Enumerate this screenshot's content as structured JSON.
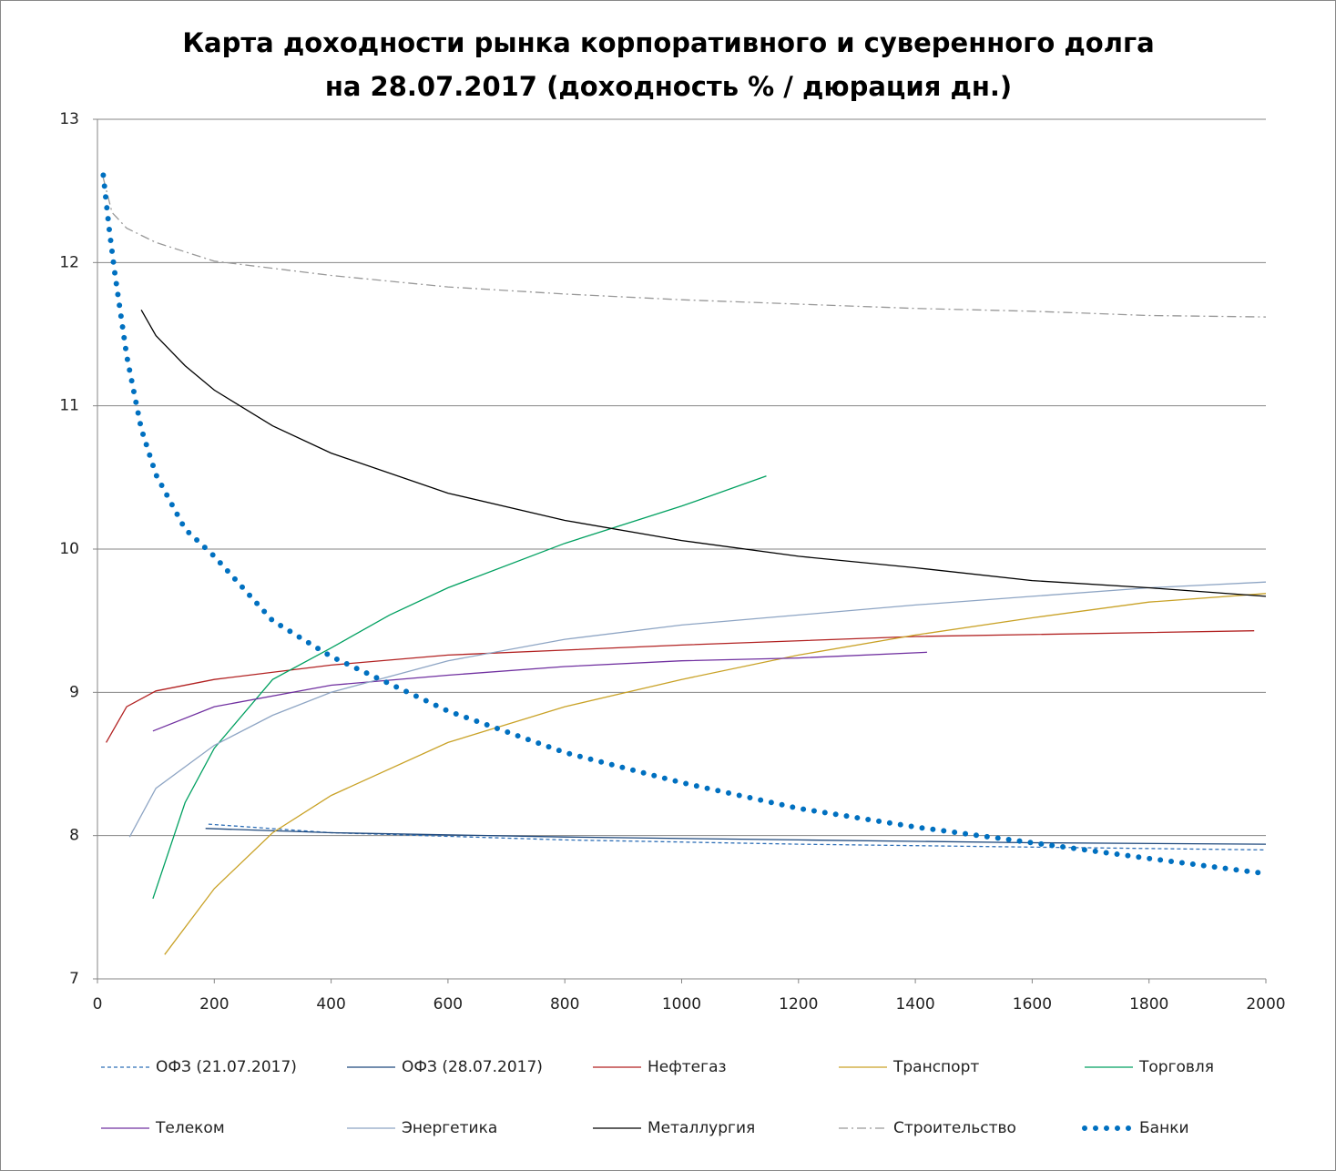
{
  "chart_data": {
    "type": "line",
    "title": "Карта доходности рынка корпоративного и суверенного долга на 28.07.2017 (доходность % / дюрация дн.)",
    "xlim": [
      0,
      2000
    ],
    "xticks": [
      0,
      200,
      400,
      600,
      800,
      1000,
      1200,
      1400,
      1600,
      1800,
      2000
    ],
    "ylim": [
      7,
      13
    ],
    "yticks": [
      7,
      8,
      9,
      10,
      11,
      12,
      13
    ],
    "grid": true,
    "series": [
      {
        "name": "ОФЗ (21.07.2017)",
        "color": "#2e6fb7",
        "dash": "dashed",
        "x": [
          190,
          400,
          800,
          1200,
          1600,
          2000
        ],
        "values": [
          8.08,
          8.02,
          7.97,
          7.94,
          7.92,
          7.9
        ]
      },
      {
        "name": "ОФЗ (28.07.2017)",
        "color": "#1f497d",
        "dash": "solid",
        "x": [
          185,
          400,
          800,
          1200,
          1600,
          2000
        ],
        "values": [
          8.05,
          8.02,
          7.99,
          7.97,
          7.95,
          7.94
        ]
      },
      {
        "name": "Нефтегаз",
        "color": "#b22222",
        "dash": "solid",
        "x": [
          15,
          50,
          100,
          200,
          400,
          600,
          1000,
          1400,
          1980
        ],
        "values": [
          8.65,
          8.9,
          9.01,
          9.09,
          9.19,
          9.26,
          9.33,
          9.39,
          9.43
        ]
      },
      {
        "name": "Транспорт",
        "color": "#c9a227",
        "dash": "solid",
        "x": [
          115,
          200,
          300,
          400,
          600,
          800,
          1000,
          1200,
          1400,
          1600,
          1800,
          2000
        ],
        "values": [
          7.17,
          7.63,
          8.02,
          8.28,
          8.65,
          8.9,
          9.09,
          9.26,
          9.4,
          9.52,
          9.63,
          9.69
        ]
      },
      {
        "name": "Торговля",
        "color": "#00a060",
        "dash": "solid",
        "x": [
          95,
          150,
          200,
          300,
          400,
          500,
          600,
          800,
          1000,
          1145
        ],
        "values": [
          7.56,
          8.23,
          8.61,
          9.09,
          9.31,
          9.54,
          9.73,
          10.04,
          10.3,
          10.51
        ]
      },
      {
        "name": "Телеком",
        "color": "#7030a0",
        "dash": "solid",
        "x": [
          95,
          200,
          400,
          600,
          800,
          1000,
          1200,
          1420
        ],
        "values": [
          8.73,
          8.9,
          9.05,
          9.12,
          9.18,
          9.22,
          9.24,
          9.28
        ]
      },
      {
        "name": "Энергетика",
        "color": "#8ea5c4",
        "dash": "solid",
        "x": [
          55,
          100,
          200,
          300,
          400,
          600,
          800,
          1000,
          1200,
          1400,
          1600,
          1800,
          2000
        ],
        "values": [
          7.99,
          8.33,
          8.63,
          8.84,
          9.0,
          9.22,
          9.37,
          9.47,
          9.54,
          9.61,
          9.67,
          9.73,
          9.77
        ]
      },
      {
        "name": "Металлургия",
        "color": "#000000",
        "dash": "solid",
        "x": [
          75,
          100,
          150,
          200,
          300,
          400,
          600,
          800,
          1000,
          1200,
          1400,
          1600,
          1800,
          2000
        ],
        "values": [
          11.67,
          11.49,
          11.28,
          11.11,
          10.86,
          10.67,
          10.39,
          10.2,
          10.06,
          9.95,
          9.87,
          9.78,
          9.73,
          9.67
        ]
      },
      {
        "name": "Строительство",
        "color": "#999999",
        "dash": "dashdot",
        "x": [
          10,
          25,
          50,
          100,
          200,
          400,
          600,
          800,
          1000,
          1200,
          1400,
          1600,
          1800,
          2000
        ],
        "values": [
          12.59,
          12.35,
          12.24,
          12.14,
          12.01,
          11.91,
          11.83,
          11.78,
          11.74,
          11.71,
          11.68,
          11.66,
          11.63,
          11.62
        ]
      },
      {
        "name": "Банки",
        "color": "#0070c0",
        "dash": "dotted",
        "x": [
          10,
          20,
          30,
          50,
          75,
          100,
          150,
          200,
          300,
          400,
          500,
          600,
          800,
          1000,
          1200,
          1400,
          1600,
          1800,
          1990
        ],
        "values": [
          12.61,
          12.24,
          11.92,
          11.35,
          10.84,
          10.52,
          10.14,
          9.95,
          9.5,
          9.25,
          9.06,
          8.87,
          8.58,
          8.37,
          8.19,
          8.06,
          7.95,
          7.84,
          7.74
        ]
      }
    ]
  }
}
